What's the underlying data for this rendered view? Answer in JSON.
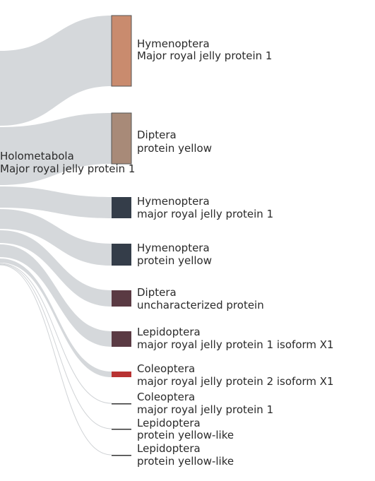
{
  "source": {
    "group": "Holometabola",
    "protein": "Major royal jelly protein 1"
  },
  "nodes": [
    {
      "group": "Hymenoptera",
      "protein": "Major royal jelly protein 1",
      "color": "#c98b6e"
    },
    {
      "group": "Diptera",
      "protein": "protein yellow",
      "color": "#a88a78"
    },
    {
      "group": "Hymenoptera",
      "protein": "major royal jelly protein 1",
      "color": "#343d49"
    },
    {
      "group": "Hymenoptera",
      "protein": "protein yellow",
      "color": "#343d49"
    },
    {
      "group": "Diptera",
      "protein": "uncharacterized protein",
      "color": "#5a3a43"
    },
    {
      "group": "Lepidoptera",
      "protein": "major royal jelly protein 1 isoform X1",
      "color": "#5a3a43"
    },
    {
      "group": "Coleoptera",
      "protein": "major royal jelly protein 2 isoform X1",
      "color": "#b83232"
    },
    {
      "group": "Coleoptera",
      "protein": "major royal jelly protein 1",
      "color": "#333333"
    },
    {
      "group": "Lepidoptera",
      "protein": "protein yellow-like",
      "color": "#333333"
    },
    {
      "group": "Lepidoptera",
      "protein": "protein yellow-like",
      "color": "#333333"
    }
  ]
}
